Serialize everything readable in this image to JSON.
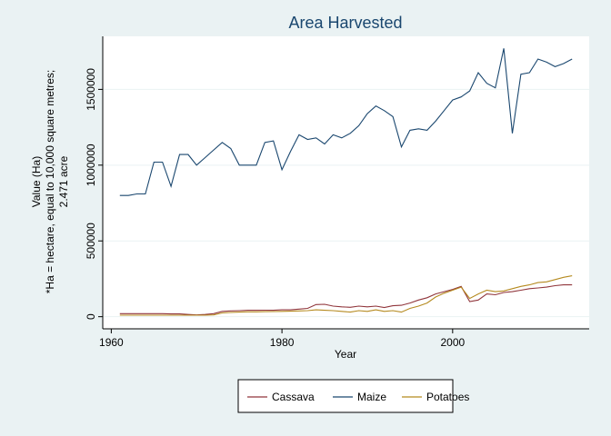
{
  "chart_data": {
    "type": "line",
    "title": "Area Harvested",
    "xlabel": "Year",
    "ylabel_lines": [
      "Value (Ha)",
      "*Ha = hectare, equal to 10,000 square metres;",
      "2.471 acre"
    ],
    "xlim": [
      1959,
      2016
    ],
    "ylim": [
      -80000,
      1850000
    ],
    "xticks": [
      1960,
      1980,
      2000
    ],
    "yticks": [
      0,
      500000,
      1000000,
      1500000
    ],
    "grid": true,
    "legend_position": "bottom",
    "series": [
      {
        "name": "Cassava",
        "color": "#90353b",
        "x": [
          1961,
          1962,
          1963,
          1964,
          1965,
          1966,
          1967,
          1968,
          1969,
          1970,
          1971,
          1972,
          1973,
          1974,
          1975,
          1976,
          1977,
          1978,
          1979,
          1980,
          1981,
          1982,
          1983,
          1984,
          1985,
          1986,
          1987,
          1988,
          1989,
          1990,
          1991,
          1992,
          1993,
          1994,
          1995,
          1996,
          1997,
          1998,
          1999,
          2000,
          2001,
          2002,
          2003,
          2004,
          2005,
          2006,
          2007,
          2008,
          2009,
          2010,
          2011,
          2012,
          2013,
          2014
        ],
        "values": [
          20000,
          20000,
          20000,
          20000,
          20000,
          20000,
          18000,
          18000,
          15000,
          12000,
          15000,
          20000,
          35000,
          38000,
          40000,
          42000,
          42000,
          43000,
          42000,
          45000,
          45000,
          50000,
          55000,
          80000,
          82000,
          70000,
          65000,
          62000,
          70000,
          65000,
          70000,
          60000,
          72000,
          75000,
          90000,
          110000,
          125000,
          150000,
          165000,
          180000,
          200000,
          100000,
          110000,
          150000,
          145000,
          160000,
          165000,
          175000,
          185000,
          190000,
          195000,
          205000,
          210000,
          210000
        ]
      },
      {
        "name": "Maize",
        "color": "#1a476f",
        "x": [
          1961,
          1962,
          1963,
          1964,
          1965,
          1966,
          1967,
          1968,
          1969,
          1970,
          1971,
          1972,
          1973,
          1974,
          1975,
          1976,
          1977,
          1978,
          1979,
          1980,
          1981,
          1982,
          1983,
          1984,
          1985,
          1986,
          1987,
          1988,
          1989,
          1990,
          1991,
          1992,
          1993,
          1994,
          1995,
          1996,
          1997,
          1998,
          1999,
          2000,
          2001,
          2002,
          2003,
          2004,
          2005,
          2006,
          2007,
          2008,
          2009,
          2010,
          2011,
          2012,
          2013,
          2014
        ],
        "values": [
          800000,
          800000,
          810000,
          810000,
          1020000,
          1020000,
          860000,
          1070000,
          1070000,
          1000000,
          1050000,
          1100000,
          1150000,
          1110000,
          1000000,
          1000000,
          1000000,
          1150000,
          1160000,
          970000,
          1090000,
          1200000,
          1170000,
          1180000,
          1140000,
          1200000,
          1180000,
          1210000,
          1260000,
          1340000,
          1390000,
          1360000,
          1320000,
          1120000,
          1230000,
          1240000,
          1230000,
          1290000,
          1360000,
          1430000,
          1450000,
          1490000,
          1610000,
          1540000,
          1510000,
          1770000,
          1210000,
          1600000,
          1610000,
          1700000,
          1680000,
          1650000,
          1670000,
          1700000
        ]
      },
      {
        "name": "Potatoes",
        "color": "#b58a1f",
        "x": [
          1961,
          1962,
          1963,
          1964,
          1965,
          1966,
          1967,
          1968,
          1969,
          1970,
          1971,
          1972,
          1973,
          1974,
          1975,
          1976,
          1977,
          1978,
          1979,
          1980,
          1981,
          1982,
          1983,
          1984,
          1985,
          1986,
          1987,
          1988,
          1989,
          1990,
          1991,
          1992,
          1993,
          1994,
          1995,
          1996,
          1997,
          1998,
          1999,
          2000,
          2001,
          2002,
          2003,
          2004,
          2005,
          2006,
          2007,
          2008,
          2009,
          2010,
          2011,
          2012,
          2013,
          2014
        ],
        "values": [
          10000,
          10000,
          10000,
          10000,
          10000,
          10000,
          10000,
          10000,
          10000,
          10000,
          10000,
          12000,
          25000,
          28000,
          30000,
          32000,
          32000,
          33000,
          34000,
          35000,
          36000,
          38000,
          40000,
          45000,
          42000,
          40000,
          35000,
          30000,
          40000,
          35000,
          45000,
          35000,
          40000,
          30000,
          55000,
          70000,
          90000,
          130000,
          155000,
          175000,
          195000,
          120000,
          150000,
          175000,
          165000,
          170000,
          185000,
          200000,
          210000,
          225000,
          230000,
          245000,
          260000,
          270000
        ]
      }
    ]
  }
}
